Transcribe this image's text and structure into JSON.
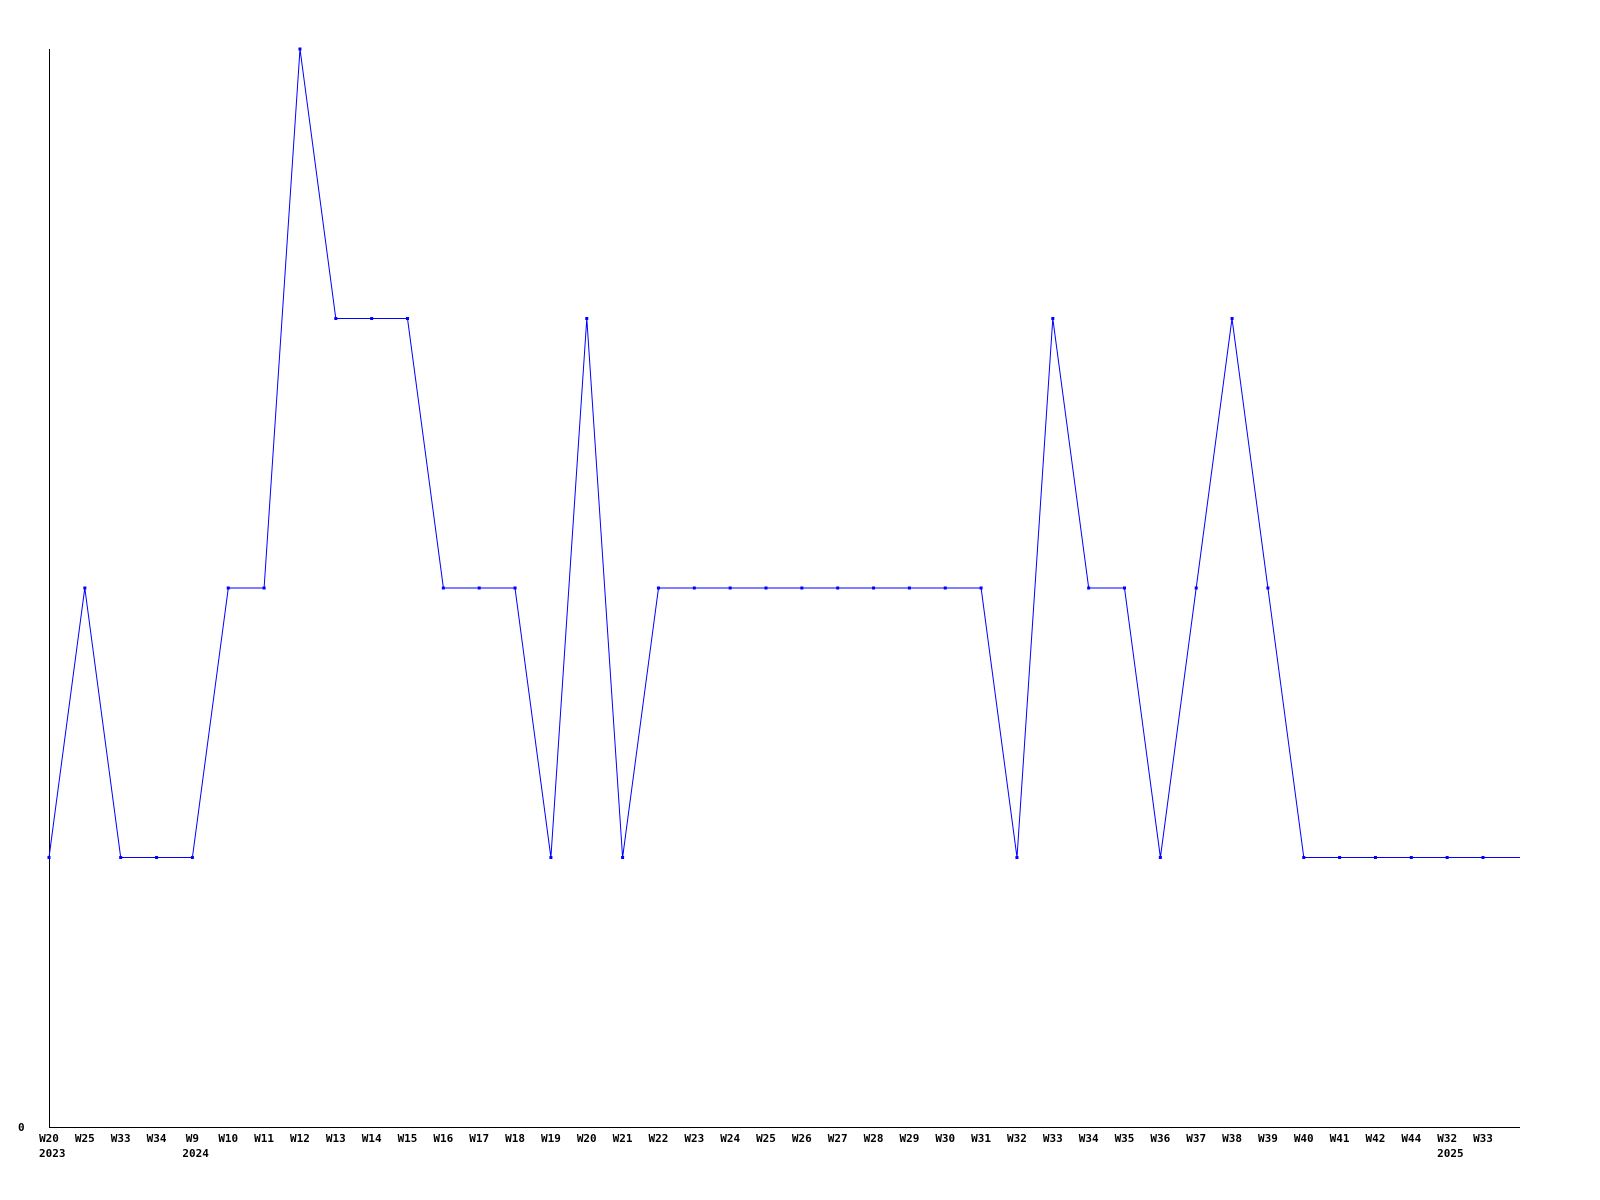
{
  "chart_data": {
    "type": "line",
    "title": "",
    "xlabel": "",
    "ylabel": "",
    "ylim": [
      0,
      4
    ],
    "y_ticks": [
      "0"
    ],
    "grid": false,
    "line_color": "#0000ff",
    "axis_color": "#000000",
    "categories": [
      "W20",
      "W25",
      "W33",
      "W34",
      "W9",
      "W10",
      "W11",
      "W12",
      "W13",
      "W14",
      "W15",
      "W16",
      "W17",
      "W18",
      "W19",
      "W20",
      "W21",
      "W22",
      "W23",
      "W24",
      "W25",
      "W26",
      "W27",
      "W28",
      "W29",
      "W30",
      "W31",
      "W32",
      "W33",
      "W34",
      "W35",
      "W36",
      "W37",
      "W38",
      "W39",
      "W40",
      "W41",
      "W42",
      "W44",
      "W32",
      "W33"
    ],
    "year_labels": [
      {
        "index": 0,
        "label": "2023"
      },
      {
        "index": 4,
        "label": "2024"
      },
      {
        "index": 39,
        "label": "2025"
      }
    ],
    "values": [
      1,
      2,
      1,
      1,
      1,
      2,
      2,
      4,
      3,
      3,
      3,
      2,
      2,
      2,
      1,
      3,
      1,
      2,
      2,
      2,
      2,
      2,
      2,
      2,
      2,
      2,
      2,
      1,
      3,
      2,
      2,
      1,
      2,
      3,
      2,
      1,
      1,
      1,
      1,
      1,
      1
    ]
  }
}
